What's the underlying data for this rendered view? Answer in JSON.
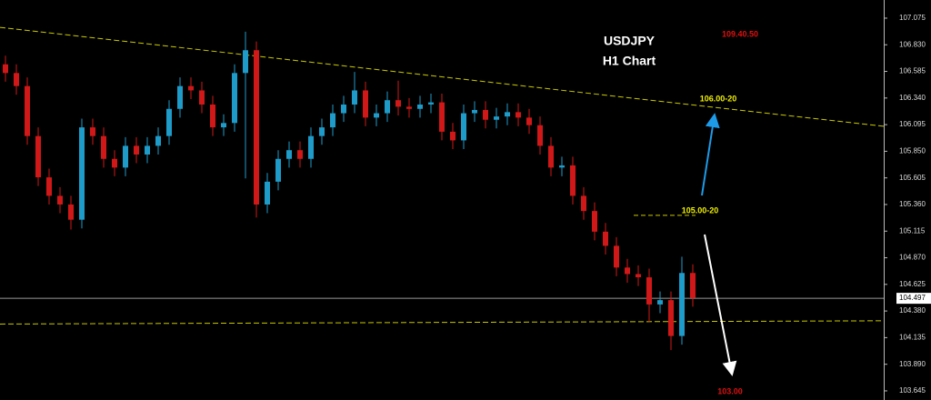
{
  "chart_data": {
    "type": "candlestick",
    "title": "USDJPY",
    "subtitle": "H1 Chart",
    "up_color": "#1e9bc8",
    "down_color": "#d01818",
    "open": [
      106.65,
      106.57,
      106.45,
      105.99,
      105.61,
      105.44,
      105.36,
      105.22,
      106.07,
      105.99,
      105.78,
      105.7,
      105.9,
      105.82,
      105.9,
      105.99,
      106.24,
      106.45,
      106.41,
      106.28,
      106.07,
      106.11,
      106.57,
      106.78,
      105.36,
      105.57,
      105.78,
      105.86,
      105.78,
      105.99,
      106.07,
      106.2,
      106.28,
      106.41,
      106.16,
      106.2,
      106.32,
      106.26,
      106.24,
      106.28,
      106.3,
      106.03,
      105.95,
      106.2,
      106.23,
      106.14,
      106.17,
      106.21,
      106.16,
      106.09,
      105.9,
      105.7,
      105.72,
      105.44,
      105.3,
      105.11,
      104.98,
      104.78,
      104.72,
      104.69,
      104.44,
      104.48,
      104.15,
      104.73
    ],
    "high": [
      106.73,
      106.65,
      106.53,
      106.07,
      105.69,
      105.52,
      105.44,
      106.15,
      106.15,
      106.07,
      105.86,
      105.98,
      105.98,
      105.98,
      106.07,
      106.32,
      106.53,
      106.53,
      106.49,
      106.36,
      106.19,
      106.65,
      106.95,
      106.86,
      105.65,
      105.86,
      105.94,
      105.94,
      106.07,
      106.15,
      106.28,
      106.36,
      106.58,
      106.49,
      106.28,
      106.4,
      106.5,
      106.34,
      106.36,
      106.38,
      106.38,
      106.11,
      106.28,
      106.31,
      106.31,
      106.25,
      106.29,
      106.29,
      106.24,
      106.17,
      105.98,
      105.8,
      105.8,
      105.52,
      105.38,
      105.19,
      105.06,
      104.86,
      104.8,
      104.77,
      104.56,
      104.56,
      104.88,
      104.81
    ],
    "low": [
      106.49,
      106.37,
      105.91,
      105.53,
      105.36,
      105.28,
      105.13,
      105.14,
      105.91,
      105.7,
      105.62,
      105.62,
      105.74,
      105.74,
      105.82,
      105.91,
      106.16,
      106.33,
      106.2,
      105.99,
      105.99,
      106.03,
      105.6,
      105.24,
      105.28,
      105.49,
      105.7,
      105.7,
      105.7,
      105.91,
      105.99,
      106.12,
      106.2,
      106.08,
      106.08,
      106.12,
      106.18,
      106.16,
      106.16,
      106.2,
      105.95,
      105.87,
      105.87,
      106.12,
      106.06,
      106.06,
      106.09,
      106.08,
      106.01,
      105.82,
      105.62,
      105.62,
      105.36,
      105.22,
      105.03,
      104.9,
      104.7,
      104.64,
      104.61,
      104.28,
      104.36,
      104.02,
      104.07,
      104.42
    ],
    "close": [
      106.57,
      106.45,
      105.99,
      105.61,
      105.44,
      105.36,
      105.22,
      106.07,
      105.99,
      105.78,
      105.7,
      105.9,
      105.82,
      105.9,
      105.99,
      106.24,
      106.45,
      106.41,
      106.28,
      106.07,
      106.11,
      106.57,
      106.78,
      105.36,
      105.57,
      105.78,
      105.86,
      105.78,
      105.99,
      106.07,
      106.2,
      106.28,
      106.41,
      106.16,
      106.2,
      106.32,
      106.26,
      106.24,
      106.28,
      106.3,
      106.03,
      105.95,
      106.2,
      106.23,
      106.14,
      106.17,
      106.21,
      106.16,
      106.09,
      105.9,
      105.7,
      105.72,
      105.44,
      105.3,
      105.11,
      104.98,
      104.78,
      104.72,
      104.69,
      104.44,
      104.48,
      104.15,
      104.73,
      104.5
    ],
    "ylim": [
      103.561,
      107.242
    ],
    "yticks": [
      107.075,
      {
        "value": 106.83,
        "label": "106.830"
      },
      106.585,
      {
        "value": 106.34,
        "label": "106.340"
      },
      106.095,
      {
        "value": 105.85,
        "label": "105.850"
      },
      105.605,
      {
        "value": 105.36,
        "label": "105.360"
      },
      105.115,
      {
        "value": 104.87,
        "label": "104.870"
      },
      104.625,
      {
        "value": 104.38,
        "label": "104.380"
      },
      104.135,
      {
        "value": 103.89,
        "label": "103.890"
      },
      103.645
    ],
    "current": 104.497,
    "trendlines": [
      {
        "values": [
          106.99,
          106.08
        ],
        "color": "#c8c800"
      },
      {
        "values": [
          104.26,
          104.29
        ],
        "color": "#c8c800"
      }
    ],
    "level": {
      "value": 105.26,
      "color": "#c8c800"
    },
    "annotations": [
      {
        "text": "109.40.50",
        "color": "#e01010"
      },
      {
        "text": "106.00-20",
        "color": "#f0f000"
      },
      {
        "text": "105.00-20",
        "color": "#f0f000"
      },
      {
        "text": "103.00",
        "color": "#e01010"
      }
    ]
  }
}
